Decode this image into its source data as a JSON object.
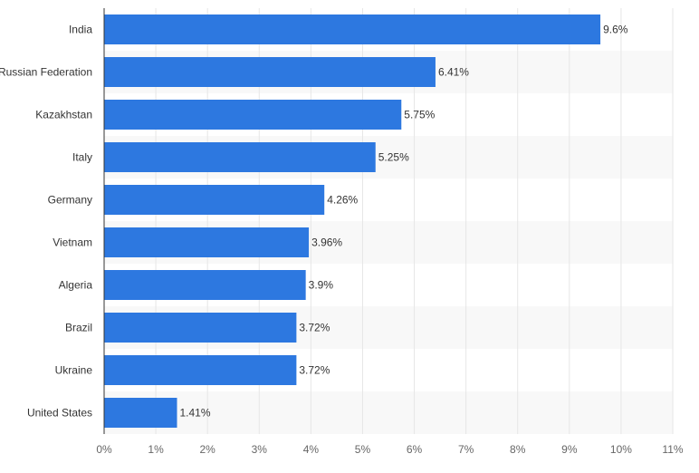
{
  "chart_data": {
    "type": "bar",
    "orientation": "horizontal",
    "categories": [
      "India",
      "Russian Federation",
      "Kazakhstan",
      "Italy",
      "Germany",
      "Vietnam",
      "Algeria",
      "Brazil",
      "Ukraine",
      "United States"
    ],
    "values": [
      9.6,
      6.41,
      5.75,
      5.25,
      4.26,
      3.96,
      3.9,
      3.72,
      3.72,
      1.41
    ],
    "value_labels": [
      "9.6%",
      "6.41%",
      "5.75%",
      "5.25%",
      "4.26%",
      "3.96%",
      "3.9%",
      "3.72%",
      "3.72%",
      "1.41%"
    ],
    "xlim": [
      0,
      11
    ],
    "x_ticks": [
      0,
      1,
      2,
      3,
      4,
      5,
      6,
      7,
      8,
      9,
      10,
      11
    ],
    "x_tick_labels": [
      "0%",
      "1%",
      "2%",
      "3%",
      "4%",
      "5%",
      "6%",
      "7%",
      "8%",
      "9%",
      "10%",
      "11%"
    ],
    "title": "",
    "xlabel": "",
    "ylabel": "",
    "grid": "vertical",
    "legend": "none",
    "colors": {
      "bar": "#2d78e0",
      "gridline": "#e6e6e6",
      "band": "#f8f8f8",
      "axis": "#333333"
    }
  }
}
